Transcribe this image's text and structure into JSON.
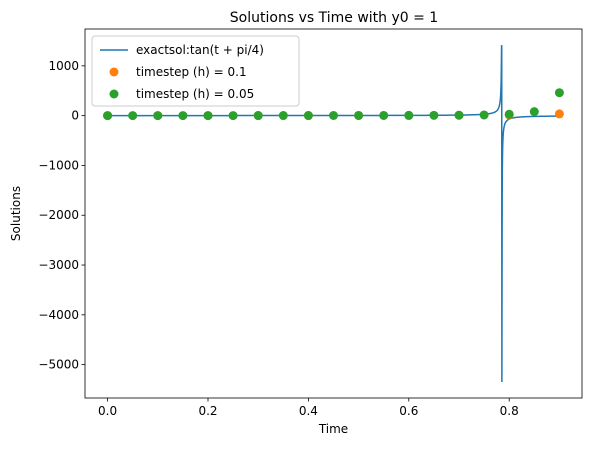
{
  "chart_data": {
    "type": "line",
    "title": "Solutions vs Time with y0 = 1",
    "xlabel": "Time",
    "ylabel": "Solutions",
    "xlim": [
      -0.045,
      0.945
    ],
    "ylim": [
      -5670,
      1740
    ],
    "xticks": [
      0.0,
      0.2,
      0.4,
      0.6,
      0.8
    ],
    "xtick_labels": [
      "0.0",
      "0.2",
      "0.4",
      "0.6",
      "0.8"
    ],
    "yticks": [
      -5000,
      -4000,
      -3000,
      -2000,
      -1000,
      0,
      1000
    ],
    "ytick_labels": [
      "−5000",
      "−4000",
      "−3000",
      "−2000",
      "−1000",
      "0",
      "1000"
    ],
    "grid": false,
    "legend_position": "upper-left",
    "series": [
      {
        "name": "exactsol:tan(t + pi/4)",
        "kind": "line",
        "color": "#1f77b4",
        "function": "tan(t + pi/4)",
        "x_range": [
          0.0,
          0.9
        ],
        "display_clip": [
          -5350,
          1400
        ]
      },
      {
        "name": "timestep (h) = 0.1",
        "kind": "markers",
        "color": "#ff7f0e",
        "x": [
          0.0,
          0.1,
          0.2,
          0.3,
          0.4,
          0.5,
          0.6,
          0.7,
          0.8,
          0.9
        ],
        "values": [
          1,
          1.2,
          1.5,
          1.9,
          2.5,
          3.5,
          5,
          8,
          14,
          35
        ]
      },
      {
        "name": "timestep (h) = 0.05",
        "kind": "markers",
        "color": "#2ca02c",
        "x": [
          0.0,
          0.05,
          0.1,
          0.15,
          0.2,
          0.25,
          0.3,
          0.35,
          0.4,
          0.45,
          0.5,
          0.55,
          0.6,
          0.65,
          0.7,
          0.75,
          0.8,
          0.85,
          0.9
        ],
        "values": [
          1,
          1.1,
          1.2,
          1.35,
          1.5,
          1.7,
          1.9,
          2.2,
          2.5,
          3,
          3.5,
          4.2,
          5,
          6.5,
          9,
          14,
          28,
          80,
          460
        ]
      }
    ]
  }
}
